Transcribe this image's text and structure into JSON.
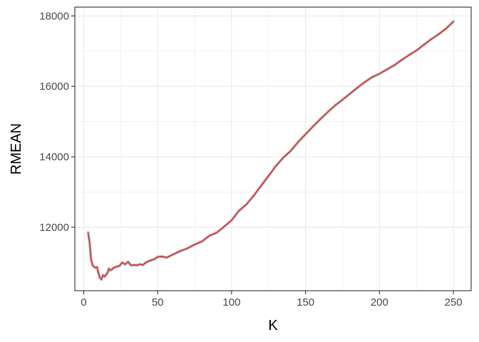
{
  "chart_data": {
    "type": "line",
    "xlabel": "K",
    "ylabel": "RMEAN",
    "xlim": [
      -6,
      262
    ],
    "ylim": [
      10200,
      18250
    ],
    "x_ticks": [
      0,
      50,
      100,
      150,
      200,
      250
    ],
    "y_ticks": [
      12000,
      14000,
      16000,
      18000
    ],
    "x_tick_labels": [
      "0",
      "50",
      "100",
      "150",
      "200",
      "250"
    ],
    "y_tick_labels": [
      "12000",
      "14000",
      "16000",
      "18000"
    ],
    "grid": true,
    "colors": {
      "line": "#e41a1c",
      "points": "#bdbdbd",
      "panel_border": "#333333",
      "grid": "#ebebeb"
    },
    "series": [
      {
        "x": [
          3,
          4,
          5,
          6,
          7,
          8,
          9,
          10,
          11,
          12,
          13,
          14,
          15,
          16,
          17,
          18,
          19,
          20,
          22,
          24,
          26,
          28,
          30,
          32,
          34,
          36,
          38,
          40,
          42,
          44,
          46,
          48,
          50,
          53,
          56,
          60,
          65,
          70,
          75,
          80,
          85,
          90,
          95,
          100,
          105,
          110,
          115,
          120,
          125,
          130,
          135,
          140,
          145,
          150,
          155,
          160,
          165,
          170,
          175,
          180,
          185,
          190,
          195,
          200,
          205,
          210,
          215,
          220,
          225,
          230,
          235,
          240,
          245,
          250
        ],
        "y": [
          11850,
          11560,
          11080,
          10920,
          10880,
          10850,
          10870,
          10700,
          10560,
          10520,
          10640,
          10600,
          10650,
          10700,
          10820,
          10780,
          10800,
          10840,
          10880,
          10900,
          11000,
          10950,
          11020,
          10920,
          10930,
          10920,
          10950,
          10930,
          11000,
          11040,
          11070,
          11100,
          11160,
          11170,
          11140,
          11220,
          11320,
          11400,
          11510,
          11600,
          11760,
          11850,
          12020,
          12200,
          12470,
          12650,
          12900,
          13180,
          13460,
          13740,
          13980,
          14170,
          14420,
          14640,
          14860,
          15070,
          15270,
          15460,
          15620,
          15790,
          15960,
          16120,
          16260,
          16360,
          16480,
          16600,
          16750,
          16890,
          17020,
          17180,
          17340,
          17480,
          17640,
          17840
        ]
      }
    ]
  }
}
